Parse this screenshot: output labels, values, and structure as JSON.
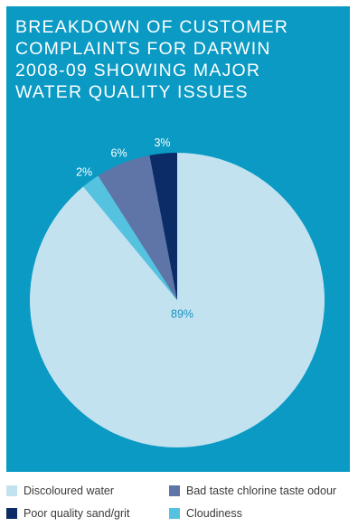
{
  "colors": {
    "panel_background": "#0a9ac4",
    "title_text": "#ffffff",
    "slice_label_inside": "#1592c1",
    "slice_label_outside": "#ffffff"
  },
  "chart_data": {
    "type": "pie",
    "title": "Breakdown of customer\ncomplaints for Darwin\n2008-09 showing major\nwater quality issues",
    "slices": [
      {
        "name": "Discoloured water",
        "value": 89,
        "label": "89%",
        "color": "#c3e2f0"
      },
      {
        "name": "Cloudiness",
        "value": 2,
        "label": "2%",
        "color": "#55c2e0"
      },
      {
        "name": "Bad taste chlorine taste odour",
        "value": 6,
        "label": "6%",
        "color": "#5f74a7"
      },
      {
        "name": "Poor quality sand/grit",
        "value": 3,
        "label": "3%",
        "color": "#0c2c68"
      }
    ],
    "legend": [
      {
        "name": "Discoloured water",
        "color": "#c3e2f0"
      },
      {
        "name": "Bad taste chlorine taste odour",
        "color": "#5f74a7"
      },
      {
        "name": "Poor quality sand/grit",
        "color": "#0c2c68"
      },
      {
        "name": "Cloudiness",
        "color": "#55c2e0"
      }
    ],
    "legend_position": "bottom"
  }
}
